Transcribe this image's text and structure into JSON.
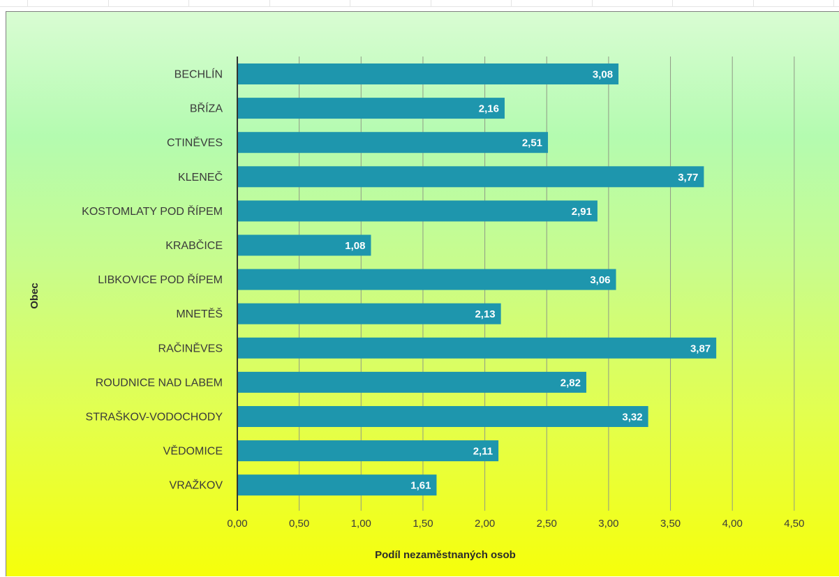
{
  "colors": {
    "bar": "#1e96ad",
    "grid": "#8f9a86",
    "axis": "#333333"
  },
  "chart_data": {
    "type": "bar",
    "orientation": "horizontal",
    "title": "",
    "xlabel": "Podíl nezaměstnaných osob",
    "ylabel": "Obec",
    "xlim": [
      0,
      4.5
    ],
    "x_ticks": [
      "0,00",
      "0,50",
      "1,00",
      "1,50",
      "2,00",
      "2,50",
      "3,00",
      "3,50",
      "4,00",
      "4,50"
    ],
    "grid": "vertical",
    "legend": "none",
    "categories": [
      "BECHLÍN",
      "BŘÍZA",
      "CTINĚVES",
      "KLENEČ",
      "KOSTOMLATY POD ŘÍPEM",
      "KRABČICE",
      "LIBKOVICE POD ŘÍPEM",
      "MNETĚŠ",
      "RAČINĚVES",
      "ROUDNICE NAD LABEM",
      "STRAŠKOV-VODOCHODY",
      "VĚDOMICE",
      "VRAŽKOV"
    ],
    "values": [
      3.08,
      2.16,
      2.51,
      3.77,
      2.91,
      1.08,
      3.06,
      2.13,
      3.87,
      2.82,
      3.32,
      2.11,
      1.61
    ],
    "value_labels": [
      "3,08",
      "2,16",
      "2,51",
      "3,77",
      "2,91",
      "1,08",
      "3,06",
      "2,13",
      "3,87",
      "2,82",
      "3,32",
      "2,11",
      "1,61"
    ]
  }
}
